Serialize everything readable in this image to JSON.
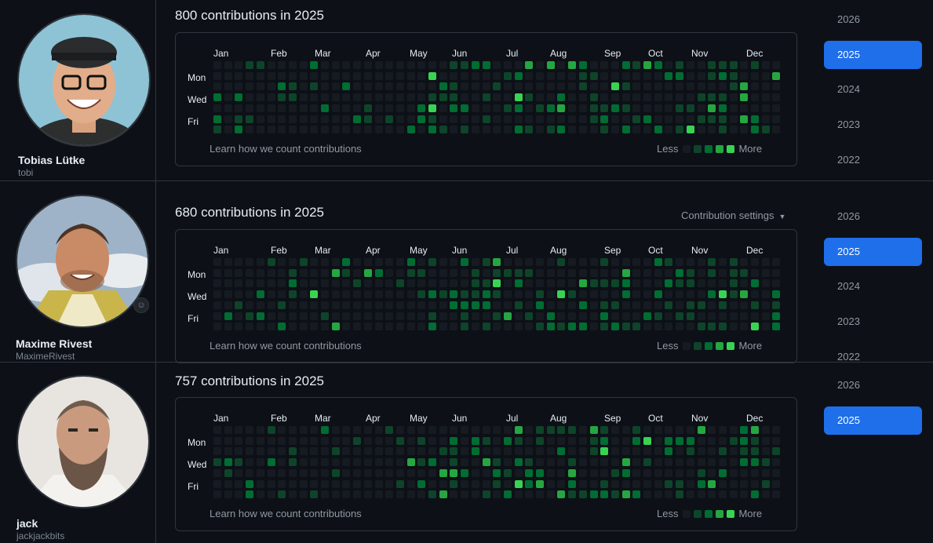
{
  "colors": {
    "level0": "#161b22",
    "level1": "#0e4429",
    "level2": "#006d32",
    "level3": "#26a641",
    "level4": "#39d353",
    "accent": "#1f6feb"
  },
  "months": [
    "Jan",
    "Feb",
    "Mar",
    "Apr",
    "May",
    "Jun",
    "Jul",
    "Aug",
    "Sep",
    "Oct",
    "Nov",
    "Dec"
  ],
  "days": [
    "Mon",
    "Wed",
    "Fri"
  ],
  "legend": {
    "less": "Less",
    "more": "More"
  },
  "learn_link": "Learn how we count contributions",
  "profiles": [
    {
      "name": "Tobias Lütke",
      "login": "tobi",
      "title": "800 contributions in 2025",
      "avatar_icon": "avatar-tobi",
      "years": [
        "2026",
        "2025",
        "2024",
        "2023",
        "2022"
      ],
      "active_year": "2025",
      "heat_density": 0.42,
      "heat_seed": 11
    },
    {
      "name": "Maxime Rivest",
      "login": "MaximeRivest",
      "title": "680 contributions in 2025",
      "settings": "Contribution settings",
      "avatar_icon": "avatar-maxime",
      "status_icon": "smiley-icon",
      "years": [
        "2026",
        "2025",
        "2024",
        "2023",
        "2022"
      ],
      "active_year": "2025",
      "heat_density": 0.4,
      "heat_seed": 23
    },
    {
      "name": "jack",
      "login": "jackjackbits",
      "title": "757 contributions in 2025",
      "avatar_icon": "avatar-jack",
      "years": [
        "2026",
        "2025"
      ],
      "active_year": "2025",
      "heat_density": 0.38,
      "heat_seed": 37
    }
  ]
}
